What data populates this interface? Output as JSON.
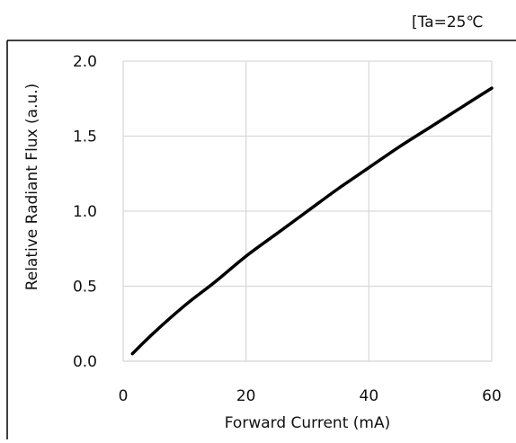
{
  "chart_data": {
    "type": "line",
    "annotation": "[Ta=25℃",
    "xlabel": "Forward Current (mA)",
    "ylabel": "Relative Radiant Flux (a.u.)",
    "xlim": [
      0,
      60
    ],
    "ylim": [
      0,
      2
    ],
    "xticks": [
      0,
      20,
      40,
      60
    ],
    "xtick_labels": [
      "0",
      "20",
      "40",
      "60"
    ],
    "yticks": [
      0,
      0.5,
      1,
      1.5,
      2
    ],
    "ytick_labels": [
      "0.0",
      "0.5",
      "1.0",
      "1.5",
      "2.0"
    ],
    "grid": true,
    "series": [
      {
        "color": "#000000",
        "x": [
          1.5,
          5,
          10,
          15,
          20,
          25,
          30,
          35,
          40,
          45,
          50,
          55,
          60
        ],
        "y": [
          0.05,
          0.19,
          0.37,
          0.53,
          0.7,
          0.85,
          1.0,
          1.15,
          1.29,
          1.43,
          1.56,
          1.69,
          1.82
        ]
      }
    ]
  }
}
